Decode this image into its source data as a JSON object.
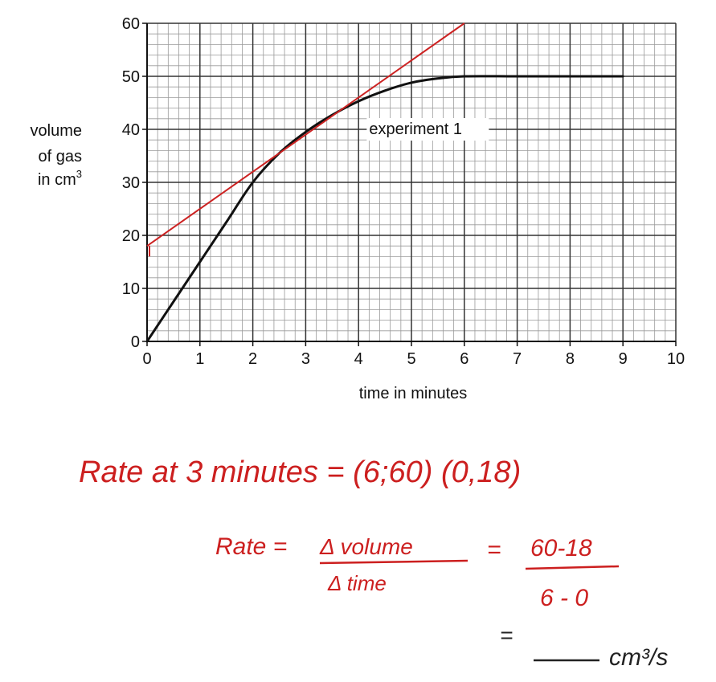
{
  "chart_data": {
    "type": "line",
    "xlabel": "time in minutes",
    "ylabel_lines": [
      "volume",
      "of gas",
      "in cm"
    ],
    "ylabel_superscript": "3",
    "xlim": [
      0,
      10
    ],
    "ylim": [
      0,
      60
    ],
    "x_ticks": [
      0,
      1,
      2,
      3,
      4,
      5,
      6,
      7,
      8,
      9,
      10
    ],
    "y_ticks": [
      0,
      10,
      20,
      30,
      40,
      50,
      60
    ],
    "minor_divisions_per_major": 5,
    "grid": true,
    "series": [
      {
        "name": "experiment 1",
        "color": "#111111",
        "x": [
          0,
          0.5,
          1,
          1.5,
          2,
          2.5,
          3,
          3.5,
          4,
          4.5,
          5,
          5.5,
          6,
          7,
          8,
          9
        ],
        "y": [
          0,
          7.5,
          15,
          22.5,
          30,
          35.5,
          39.5,
          42.7,
          45.3,
          47.3,
          48.8,
          49.6,
          50,
          50,
          50,
          50
        ]
      }
    ],
    "annotations": [
      {
        "text": "experiment 1",
        "x": 4.2,
        "y": 40
      }
    ],
    "tangent_line": {
      "color": "#cc2222",
      "x": [
        0,
        6
      ],
      "y": [
        18,
        60
      ]
    }
  },
  "notes": {
    "color": "#cc1f1f",
    "line1": "Rate at  3 minutes = (6;60) (0,18)",
    "rate_label": "Rate =",
    "numerator": "Δ volume",
    "denominator": "Δ time",
    "equals": "=",
    "num_values": "60-18",
    "den_values": "6 - 0",
    "equals2": "=",
    "units": "cm³/s"
  }
}
